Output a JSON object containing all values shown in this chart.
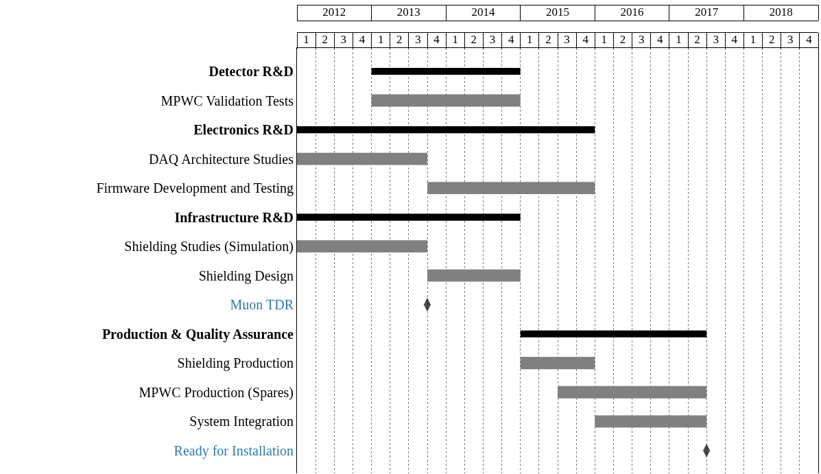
{
  "chart_data": {
    "type": "bar",
    "orientation": "horizontal",
    "categories": [
      "Detector R&D",
      "MPWC Validation Tests",
      "Electronics R&D",
      "DAQ Architecture Studies",
      "Firmware Development and Testing",
      "Infrastructure R&D",
      "Shielding Studies (Simulation)",
      "Shielding Design",
      "Muon TDR",
      "Production & Quality Assurance",
      "Shielding Production",
      "MPWC Production (Spares)",
      "System Integration",
      "Ready for Installation"
    ],
    "series": [
      {
        "color": "#000000",
        "base": [
          2012.5,
          null,
          2011.5,
          null,
          null,
          2011.5,
          null,
          null,
          null,
          2014.5,
          null,
          null,
          null,
          null
        ],
        "values": [
          2.0,
          null,
          4.0,
          null,
          null,
          3.0,
          null,
          null,
          null,
          2.5,
          null,
          null,
          null,
          null
        ]
      },
      {
        "color": "#808080",
        "base": [
          null,
          2012.5,
          null,
          2011.5,
          2013.25,
          null,
          2011.5,
          2013.25,
          null,
          null,
          2014.5,
          2015.0,
          2015.5,
          null
        ],
        "values": [
          null,
          2.0,
          null,
          1.75,
          2.25,
          null,
          1.75,
          1.25,
          null,
          null,
          1.0,
          2.0,
          1.5,
          null
        ]
      },
      {
        "type": "scatter",
        "marker": "diamond",
        "color": "#000000",
        "values": [
          null,
          null,
          null,
          null,
          null,
          null,
          null,
          null,
          2013.25,
          null,
          null,
          null,
          null,
          2017.0
        ]
      }
    ],
    "xlim": [
      2011.5,
      2018.5
    ],
    "xticks": [
      2012,
      2013,
      2014,
      2015,
      2016,
      2017,
      2018
    ],
    "annotations": [
      "1",
      "2",
      "3",
      "4",
      "1",
      "2",
      "3",
      "4",
      "1",
      "2",
      "3",
      "4",
      "1",
      "2",
      "3",
      "4",
      "1",
      "2",
      "3",
      "4",
      "1",
      "2",
      "3",
      "4",
      "1",
      "2",
      "3",
      "4"
    ],
    "grid": "x"
  }
}
